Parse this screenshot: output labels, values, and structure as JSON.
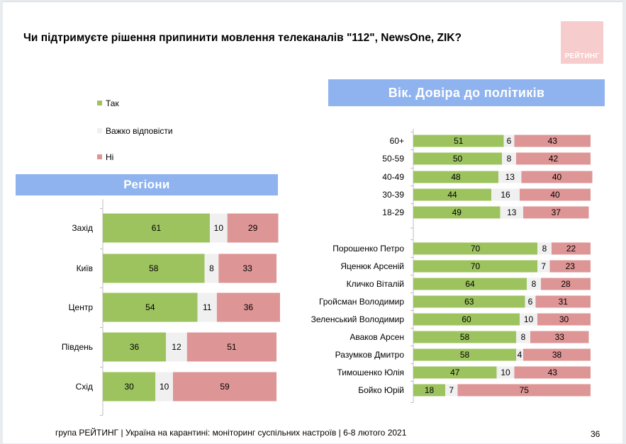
{
  "title": "Чи підтримуєте рішення припинити мовлення телеканалів \"112\", NewsOne, ZIK?",
  "logo_text": "РЕЙТИНГ",
  "legend": [
    {
      "label": "Так",
      "color": "#9dc35f"
    },
    {
      "label": "Важко відповісти",
      "color": "#f0f0f0"
    },
    {
      "label": "Ні",
      "color": "#de9595"
    }
  ],
  "colors": {
    "yes": "#9dc35f",
    "hard": "#f0f0f0",
    "no": "#de9595",
    "banner": "#8fb3ef"
  },
  "region_banner": "Регіони",
  "age_banner": "Вік. Довіра до політиків",
  "footer": "група РЕЙТИНГ | Україна на карантині: моніторинг суспільних настроїв | 6-8 лютого 2021",
  "page_number": "36",
  "chart_data": [
    {
      "type": "bar",
      "orientation": "horizontal",
      "stacked": true,
      "title": "Регіони",
      "categories": [
        "Захід",
        "Київ",
        "Центр",
        "Південь",
        "Схід"
      ],
      "series": [
        {
          "name": "Так",
          "values": [
            61,
            58,
            54,
            36,
            30
          ]
        },
        {
          "name": "Важко відповісти",
          "values": [
            10,
            8,
            11,
            12,
            10
          ]
        },
        {
          "name": "Ні",
          "values": [
            29,
            33,
            36,
            51,
            59
          ]
        }
      ]
    },
    {
      "type": "bar",
      "orientation": "horizontal",
      "stacked": true,
      "title": "Вік. Довіра до політиків",
      "categories": [
        "60+",
        "50-59",
        "40-49",
        "30-39",
        "18-29"
      ],
      "series": [
        {
          "name": "Так",
          "values": [
            51,
            50,
            48,
            44,
            49
          ]
        },
        {
          "name": "Важко відповісти",
          "values": [
            6,
            8,
            13,
            16,
            13
          ]
        },
        {
          "name": "Ні",
          "values": [
            43,
            42,
            40,
            40,
            37
          ]
        }
      ]
    },
    {
      "type": "bar",
      "orientation": "horizontal",
      "stacked": true,
      "categories": [
        "Порошенко Петро",
        "Яценюк Арсеній",
        "Кличко Віталій",
        "Гройсман Володимир",
        "Зеленський Володимир",
        "Аваков Арсен",
        "Разумков Дмитро",
        "Тимошенко Юлія",
        "Бойко Юрій"
      ],
      "series": [
        {
          "name": "Так",
          "values": [
            70,
            70,
            64,
            63,
            60,
            58,
            58,
            47,
            18
          ]
        },
        {
          "name": "Важко відповісти",
          "values": [
            8,
            7,
            8,
            6,
            10,
            8,
            4,
            10,
            7
          ]
        },
        {
          "name": "Ні",
          "values": [
            22,
            23,
            28,
            31,
            30,
            33,
            38,
            43,
            75
          ]
        }
      ]
    }
  ]
}
